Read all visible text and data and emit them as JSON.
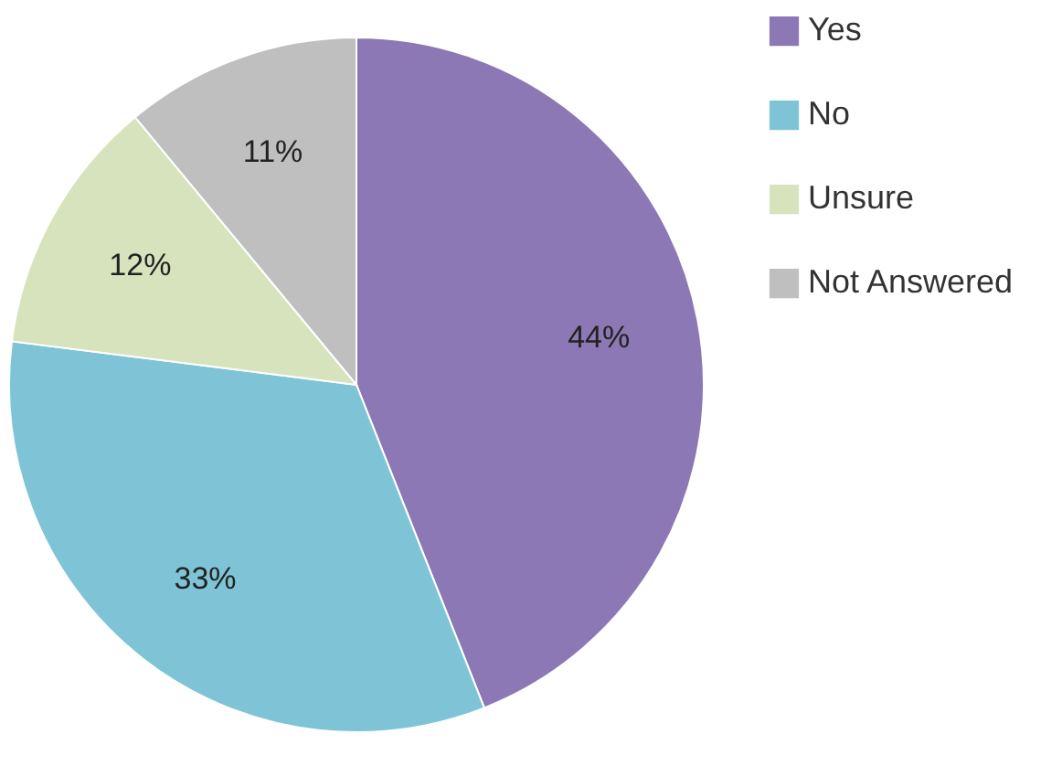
{
  "chart_data": {
    "type": "pie",
    "categories": [
      "Yes",
      "No",
      "Unsure",
      "Not Answered"
    ],
    "values": [
      44,
      33,
      12,
      11
    ],
    "colors": [
      "#8c78b4",
      "#7fc4d6",
      "#d6e3bc",
      "#bfbfbf"
    ],
    "value_labels": [
      "44%",
      "33%",
      "12%",
      "11%"
    ],
    "legend": "right"
  }
}
